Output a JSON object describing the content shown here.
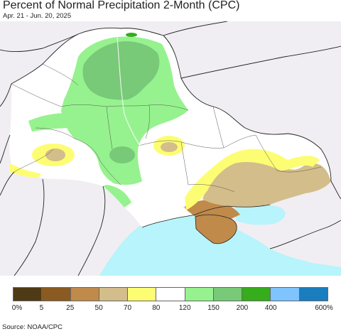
{
  "header": {
    "title": "Percent of Normal Precipitation 2-Month (CPC)",
    "subtitle": "Apr. 21 - Jun. 20, 2025"
  },
  "legend": {
    "bins": [
      {
        "color": "#4e3a14"
      },
      {
        "color": "#8b5a22"
      },
      {
        "color": "#c08a4b"
      },
      {
        "color": "#d3bd8a"
      },
      {
        "color": "#fdfd74"
      },
      {
        "color": "#ffffff"
      },
      {
        "color": "#96f28e"
      },
      {
        "color": "#78c978"
      },
      {
        "color": "#35ad1c"
      },
      {
        "color": "#7fc3ff"
      },
      {
        "color": "#1a7ebe"
      }
    ],
    "labels": [
      "0%",
      "5",
      "25",
      "50",
      "70",
      "80",
      "120",
      "150",
      "200",
      "400",
      "600%"
    ]
  },
  "footer": {
    "source": "Source: NOAA/CPC"
  },
  "map_colors": {
    "sea": "#b7f4fb",
    "outside_land": "#f0eef2",
    "border": "#222222",
    "water_hatch": "#ffffff"
  }
}
